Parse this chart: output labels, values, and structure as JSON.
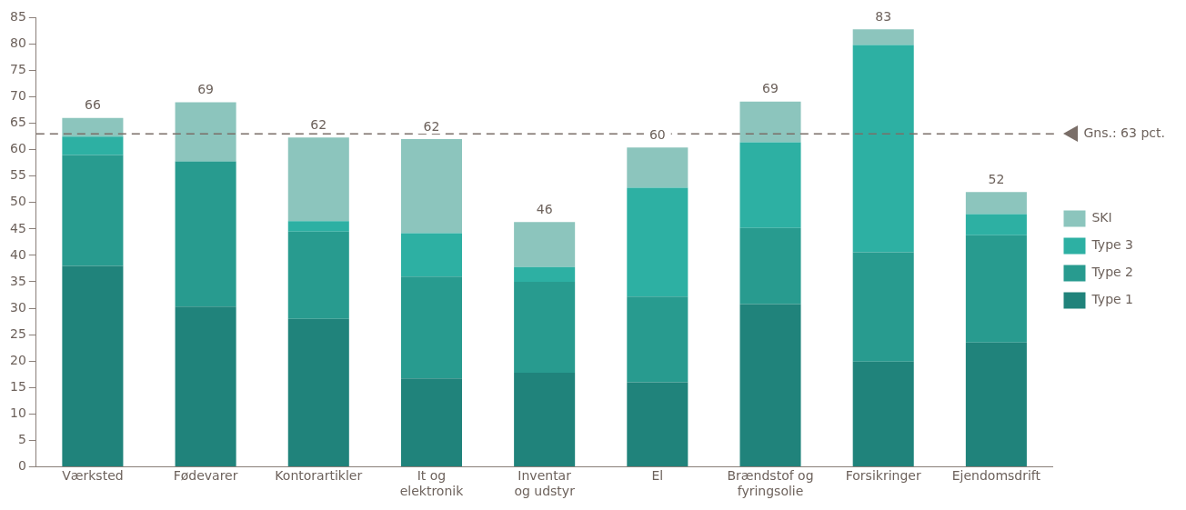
{
  "chart_data": {
    "type": "bar",
    "stacked": true,
    "categories": [
      "Værksted",
      "Fødevarer",
      "Kontorartikler",
      "It og\nelektronik",
      "Inventar\nog udstyr",
      "El",
      "Brændstof og\nfyringsolie",
      "Forsikringer",
      "Ejendomsdrift"
    ],
    "series": [
      {
        "name": "Type 1",
        "color": "#20837b",
        "values": [
          38,
          30.3,
          28,
          16.7,
          17.8,
          16,
          30.8,
          19.9,
          23.5
        ]
      },
      {
        "name": "Type 2",
        "color": "#289b8f",
        "values": [
          21,
          27.5,
          16.5,
          19.3,
          17.2,
          16.2,
          14.4,
          20.7,
          20.3
        ]
      },
      {
        "name": "Type 3",
        "color": "#2db0a3",
        "values": [
          3.5,
          0,
          2,
          8.2,
          2.8,
          20.6,
          16.2,
          39.2,
          4
        ]
      },
      {
        "name": "SKI",
        "color": "#8cc5bd",
        "values": [
          3.5,
          11.2,
          15.8,
          17.8,
          8.5,
          7.6,
          7.7,
          3,
          4.2
        ]
      }
    ],
    "totals": [
      "66",
      "69",
      "62",
      "62",
      "46",
      "60",
      "69",
      "83",
      "52"
    ],
    "ylim": [
      0,
      85
    ],
    "yticks": [
      0,
      5,
      10,
      15,
      20,
      25,
      30,
      35,
      40,
      45,
      50,
      55,
      60,
      65,
      70,
      75,
      80,
      85
    ],
    "ref_lines": [
      {
        "axis": "y",
        "value": 63,
        "label": "Gns.: 63 pct.",
        "color": "#7a6e68",
        "line_style": "dashed"
      }
    ],
    "grid": false,
    "legend": "right"
  }
}
